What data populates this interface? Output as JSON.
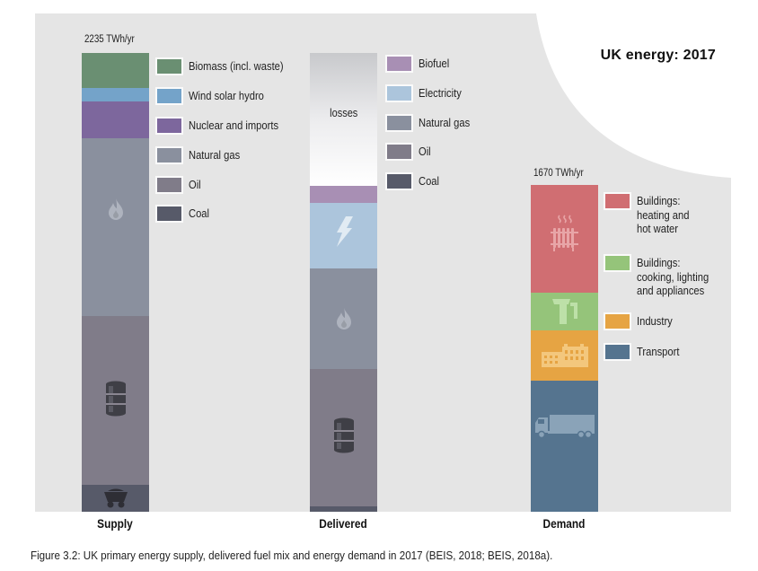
{
  "chart_data": {
    "type": "bar",
    "stacked": true,
    "title": "UK energy: 2017",
    "units": "TWh/yr",
    "categories": [
      "Supply",
      "Delivered",
      "Demand"
    ],
    "totals": {
      "Supply": "2235 TWh/yr",
      "Demand": "1670 TWh/yr"
    },
    "series": [
      {
        "bar": "Supply",
        "segments": [
          {
            "name": "Biomass (incl. waste)",
            "value": 171,
            "color": "#6a8f72"
          },
          {
            "name": "Wind solar hydro",
            "value": 66,
            "color": "#74a3c9"
          },
          {
            "name": "Nuclear and imports",
            "value": 179,
            "color": "#7d679d"
          },
          {
            "name": "Natural gas",
            "value": 866,
            "color": "#8a909e",
            "icon": "flame-icon"
          },
          {
            "name": "Oil",
            "value": 822,
            "color": "#807c89",
            "icon": "oil-barrel-icon"
          },
          {
            "name": "Coal",
            "value": 131,
            "color": "#575a69",
            "icon": "coal-cart-icon"
          }
        ]
      },
      {
        "bar": "Delivered",
        "segments": [
          {
            "name": "losses",
            "value": 647,
            "color": "gradient",
            "label": "losses"
          },
          {
            "name": "Biofuel",
            "value": 83,
            "color": "#a88fb4"
          },
          {
            "name": "Electricity",
            "value": 319,
            "color": "#acc5dc",
            "icon": "lightning-icon"
          },
          {
            "name": "Natural gas",
            "value": 490,
            "color": "#8a909e",
            "icon": "flame-icon"
          },
          {
            "name": "Oil",
            "value": 669,
            "color": "#807c89",
            "icon": "oil-barrel-icon"
          },
          {
            "name": "Coal",
            "value": 26,
            "color": "#575a69"
          }
        ]
      },
      {
        "bar": "Demand",
        "segments": [
          {
            "name": "Buildings: heating and hot water",
            "value": 551,
            "color": "#d06e72",
            "icon": "radiator-icon"
          },
          {
            "name": "Buildings: cooking, lighting and appliances",
            "value": 193,
            "color": "#95c47a",
            "icon": "kettle-icon"
          },
          {
            "name": "Industry",
            "value": 257,
            "color": "#e6a443",
            "icon": "factory-icon"
          },
          {
            "name": "Transport",
            "value": 670,
            "color": "#55748f",
            "icon": "truck-icon"
          }
        ]
      }
    ],
    "legends": {
      "supply": [
        "Biomass (incl. waste)",
        "Wind solar hydro",
        "Nuclear and imports",
        "Natural gas",
        "Oil",
        "Coal"
      ],
      "delivered": [
        "Biofuel",
        "Electricity",
        "Natural gas",
        "Oil",
        "Coal"
      ],
      "demand": [
        "Buildings:\nheating and\nhot water",
        "Buildings:\ncooking, lighting\nand appliances",
        "Industry",
        "Transport"
      ]
    },
    "xlabel": "",
    "ylabel": ""
  },
  "caption": "Figure 3.2: UK primary energy supply, delivered fuel mix and energy demand in 2017 (BEIS, 2018; BEIS, 2018a)."
}
